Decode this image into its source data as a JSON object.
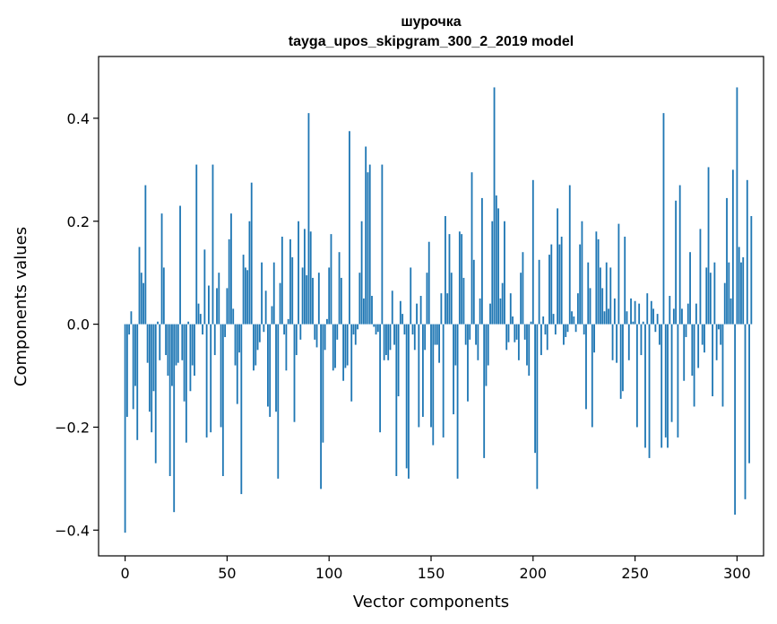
{
  "chart_data": {
    "type": "bar",
    "title": "шурочка",
    "subtitle": "tayga_upos_skipgram_300_2_2019 model",
    "xlabel": "Vector components",
    "ylabel": "Components values",
    "xlim": [
      -13,
      313
    ],
    "ylim": [
      -0.45,
      0.52
    ],
    "xticks": [
      0,
      50,
      100,
      150,
      200,
      250,
      300
    ],
    "xtick_labels": [
      "0",
      "50",
      "100",
      "150",
      "200",
      "250",
      "300"
    ],
    "yticks": [
      -0.4,
      -0.2,
      0.0,
      0.2,
      0.4
    ],
    "ytick_labels": [
      "−0.4",
      "−0.2",
      "0.0",
      "0.2",
      "0.4"
    ],
    "bar_color": "#1f77b4",
    "values": [
      -0.405,
      -0.18,
      -0.02,
      0.025,
      -0.165,
      -0.12,
      -0.225,
      0.15,
      0.1,
      0.08,
      0.27,
      -0.075,
      -0.17,
      -0.21,
      -0.13,
      -0.27,
      0.005,
      -0.07,
      0.215,
      0.11,
      -0.06,
      -0.1,
      -0.295,
      -0.12,
      -0.365,
      -0.08,
      -0.075,
      0.23,
      -0.07,
      -0.15,
      -0.23,
      0.005,
      -0.13,
      -0.08,
      -0.1,
      0.31,
      0.04,
      0.02,
      -0.02,
      0.145,
      -0.22,
      0.075,
      -0.21,
      0.31,
      -0.06,
      0.07,
      0.1,
      -0.2,
      -0.295,
      -0.025,
      0.07,
      0.165,
      0.215,
      0.03,
      -0.08,
      -0.155,
      -0.055,
      -0.33,
      0.135,
      0.11,
      0.105,
      0.2,
      0.275,
      -0.09,
      -0.08,
      -0.05,
      -0.035,
      0.12,
      -0.015,
      0.065,
      -0.16,
      -0.18,
      0.035,
      0.12,
      -0.17,
      -0.3,
      0.08,
      0.17,
      -0.02,
      -0.09,
      0.01,
      0.165,
      0.13,
      -0.19,
      -0.06,
      0.2,
      -0.03,
      0.11,
      0.185,
      0.095,
      0.41,
      0.18,
      0.09,
      -0.03,
      -0.045,
      0.1,
      -0.32,
      -0.23,
      -0.05,
      0.01,
      0.11,
      0.175,
      -0.09,
      -0.085,
      -0.03,
      0.14,
      0.09,
      -0.11,
      -0.085,
      -0.08,
      0.375,
      -0.15,
      -0.02,
      -0.04,
      -0.01,
      0.1,
      0.2,
      0.05,
      0.345,
      0.295,
      0.31,
      0.055,
      -0.005,
      -0.02,
      -0.015,
      -0.21,
      0.31,
      -0.07,
      -0.06,
      -0.07,
      -0.05,
      0.065,
      -0.04,
      -0.295,
      -0.14,
      0.045,
      0.02,
      -0.02,
      -0.28,
      -0.3,
      0.11,
      -0.02,
      -0.05,
      0.04,
      -0.2,
      0.055,
      -0.18,
      -0.05,
      0.1,
      0.16,
      -0.2,
      -0.235,
      -0.04,
      -0.04,
      -0.075,
      0.06,
      -0.22,
      0.21,
      0.06,
      0.175,
      0.1,
      -0.175,
      -0.08,
      -0.3,
      0.18,
      0.175,
      0.09,
      -0.04,
      -0.15,
      -0.03,
      0.295,
      0.125,
      -0.04,
      -0.07,
      0.05,
      0.245,
      -0.26,
      -0.12,
      -0.08,
      0.04,
      0.2,
      0.46,
      0.25,
      0.225,
      0.05,
      0.08,
      0.2,
      -0.05,
      -0.035,
      0.06,
      0.015,
      -0.035,
      -0.03,
      -0.07,
      0.1,
      0.14,
      -0.03,
      -0.08,
      -0.1,
      0.005,
      0.28,
      -0.25,
      -0.32,
      0.125,
      -0.06,
      0.015,
      -0.02,
      -0.05,
      0.135,
      0.155,
      0.02,
      -0.02,
      0.225,
      0.155,
      0.17,
      -0.04,
      -0.025,
      -0.015,
      0.27,
      0.025,
      0.015,
      -0.015,
      0.06,
      0.155,
      0.2,
      -0.02,
      -0.165,
      0.12,
      0.07,
      -0.2,
      -0.055,
      0.18,
      0.165,
      0.11,
      0.07,
      0.025,
      0.12,
      0.03,
      0.11,
      -0.07,
      0.05,
      -0.075,
      0.195,
      -0.145,
      -0.13,
      0.17,
      0.025,
      -0.07,
      0.05,
      0.005,
      0.045,
      -0.2,
      0.04,
      -0.06,
      0.005,
      -0.24,
      0.06,
      -0.26,
      0.045,
      0.03,
      -0.015,
      0.02,
      -0.04,
      -0.24,
      0.41,
      -0.22,
      -0.24,
      0.055,
      -0.19,
      0.03,
      0.24,
      -0.22,
      0.27,
      0.03,
      -0.11,
      -0.025,
      0.04,
      0.14,
      -0.1,
      -0.16,
      0.04,
      -0.085,
      0.185,
      -0.04,
      -0.055,
      0.11,
      0.305,
      0.1,
      -0.14,
      0.12,
      -0.07,
      -0.01,
      -0.04,
      -0.16,
      0.08,
      0.245,
      0.12,
      0.05,
      0.3,
      -0.37,
      0.46,
      0.15,
      0.12,
      0.13,
      -0.34,
      0.28,
      -0.27,
      0.21
    ]
  }
}
